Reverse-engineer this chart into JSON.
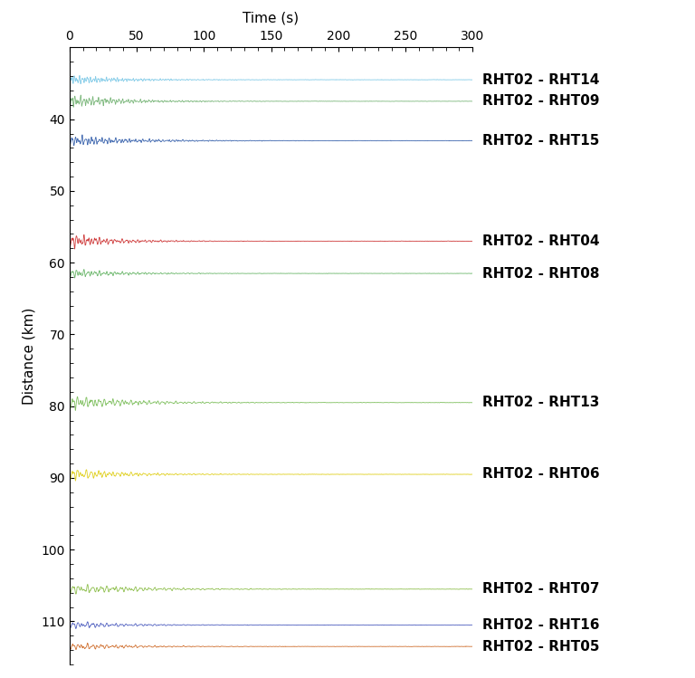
{
  "title": "Time (s)",
  "ylabel": "Distance (km)",
  "xlim": [
    0,
    300
  ],
  "ylim": [
    116,
    30
  ],
  "xticks": [
    0,
    50,
    100,
    150,
    200,
    250,
    300
  ],
  "yticks": [
    40,
    50,
    60,
    70,
    80,
    90,
    100,
    110
  ],
  "traces": [
    {
      "label": "RHT02 - RHT14",
      "distance": 34.5,
      "color": "#85cce8",
      "amplitude": 0.6,
      "decay": 0.025,
      "noise": 0.08,
      "freq": 0.5,
      "onset": 0
    },
    {
      "label": "RHT02 - RHT09",
      "distance": 37.5,
      "color": "#7db87d",
      "amplitude": 0.8,
      "decay": 0.025,
      "noise": 0.08,
      "freq": 0.45,
      "onset": 0
    },
    {
      "label": "RHT02 - RHT15",
      "distance": 43.0,
      "color": "#4169b0",
      "amplitude": 0.7,
      "decay": 0.022,
      "noise": 0.07,
      "freq": 0.4,
      "onset": 0
    },
    {
      "label": "RHT02 - RHT04",
      "distance": 57.0,
      "color": "#d04040",
      "amplitude": 0.9,
      "decay": 0.03,
      "noise": 0.07,
      "freq": 0.35,
      "onset": 0
    },
    {
      "label": "RHT02 - RHT08",
      "distance": 61.5,
      "color": "#6db86d",
      "amplitude": 0.6,
      "decay": 0.028,
      "noise": 0.06,
      "freq": 0.35,
      "onset": 0
    },
    {
      "label": "RHT02 - RHT13",
      "distance": 79.5,
      "color": "#80c060",
      "amplitude": 0.9,
      "decay": 0.022,
      "noise": 0.07,
      "freq": 0.3,
      "onset": 0
    },
    {
      "label": "RHT02 - RHT06",
      "distance": 89.5,
      "color": "#e0d020",
      "amplitude": 0.8,
      "decay": 0.025,
      "noise": 0.07,
      "freq": 0.3,
      "onset": 0
    },
    {
      "label": "RHT02 - RHT07",
      "distance": 105.5,
      "color": "#90c050",
      "amplitude": 0.7,
      "decay": 0.02,
      "noise": 0.07,
      "freq": 0.28,
      "onset": 0
    },
    {
      "label": "RHT02 - RHT16",
      "distance": 110.5,
      "color": "#5060c0",
      "amplitude": 0.5,
      "decay": 0.025,
      "noise": 0.06,
      "freq": 0.28,
      "onset": 0
    },
    {
      "label": "RHT02 - RHT05",
      "distance": 113.5,
      "color": "#d07030",
      "amplitude": 0.5,
      "decay": 0.025,
      "noise": 0.07,
      "freq": 0.28,
      "onset": 0
    }
  ],
  "background_color": "#ffffff",
  "linewidth": 0.6,
  "num_points": 6000,
  "label_fontsize": 11,
  "label_fontweight": "bold"
}
